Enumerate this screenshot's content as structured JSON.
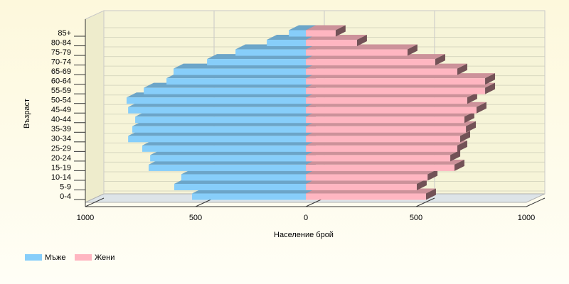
{
  "chart_data": {
    "type": "bar",
    "orientation": "pyramid",
    "x_label": "Население брой",
    "y_label": "Възраст",
    "categories": [
      "0-4",
      "5-9",
      "10-14",
      "15-19",
      "20-24",
      "25-29",
      "30-34",
      "35-39",
      "40-44",
      "45-49",
      "50-54",
      "55-59",
      "60-64",
      "65-69",
      "70-74",
      "75-79",
      "80-84",
      "85+"
    ],
    "series": [
      {
        "name": "Мъже",
        "color": "#87cefa",
        "side": "left",
        "values": [
          516,
          597,
          565,
          713,
          706,
          742,
          806,
          787,
          774,
          806,
          813,
          735,
          632,
          600,
          448,
          319,
          177,
          77
        ]
      },
      {
        "name": "Жени",
        "color": "#ffb6c1",
        "side": "right",
        "values": [
          545,
          503,
          552,
          674,
          655,
          687,
          700,
          726,
          719,
          774,
          732,
          813,
          813,
          687,
          587,
          461,
          232,
          135
        ]
      }
    ],
    "xlim": [
      -1000,
      1000
    ],
    "xticks": [
      {
        "value": -1000,
        "label": "1000"
      },
      {
        "value": -500,
        "label": "500"
      },
      0,
      {
        "value": 500,
        "label": "500"
      },
      {
        "value": 1000,
        "label": "1000"
      }
    ],
    "grid": true
  }
}
